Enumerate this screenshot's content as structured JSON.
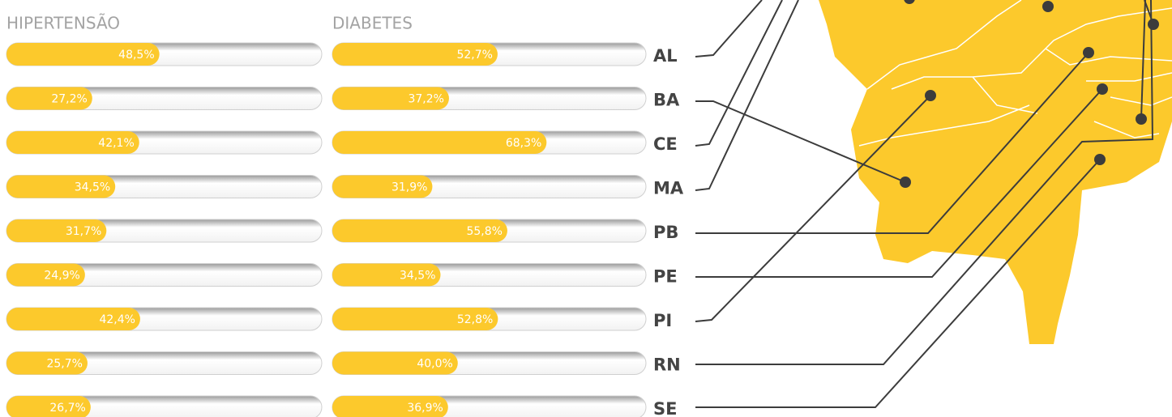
{
  "chart_data": {
    "type": "bar",
    "orientation": "horizontal",
    "categories": [
      "AL",
      "BA",
      "CE",
      "MA",
      "PB",
      "PE",
      "PI",
      "RN",
      "SE"
    ],
    "xlim": [
      0,
      100
    ],
    "series": [
      {
        "name": "HIPERTENSÃO",
        "color": "#fcc92c",
        "values": [
          48.5,
          27.2,
          42.1,
          34.5,
          31.7,
          24.9,
          42.4,
          25.7,
          26.7
        ],
        "value_labels": [
          "48,5%",
          "27,2%",
          "42,1%",
          "34,5%",
          "31,7%",
          "24,9%",
          "42,4%",
          "25,7%",
          "26,7%"
        ]
      },
      {
        "name": "DIABETES",
        "color": "#fcc92c",
        "values": [
          52.7,
          37.2,
          68.3,
          31.9,
          55.8,
          34.5,
          52.8,
          40.0,
          36.9
        ],
        "value_labels": [
          "52,7%",
          "37,2%",
          "68,3%",
          "31,9%",
          "55,8%",
          "34,5%",
          "52,8%",
          "40,0%",
          "36,9%"
        ]
      }
    ]
  }
}
